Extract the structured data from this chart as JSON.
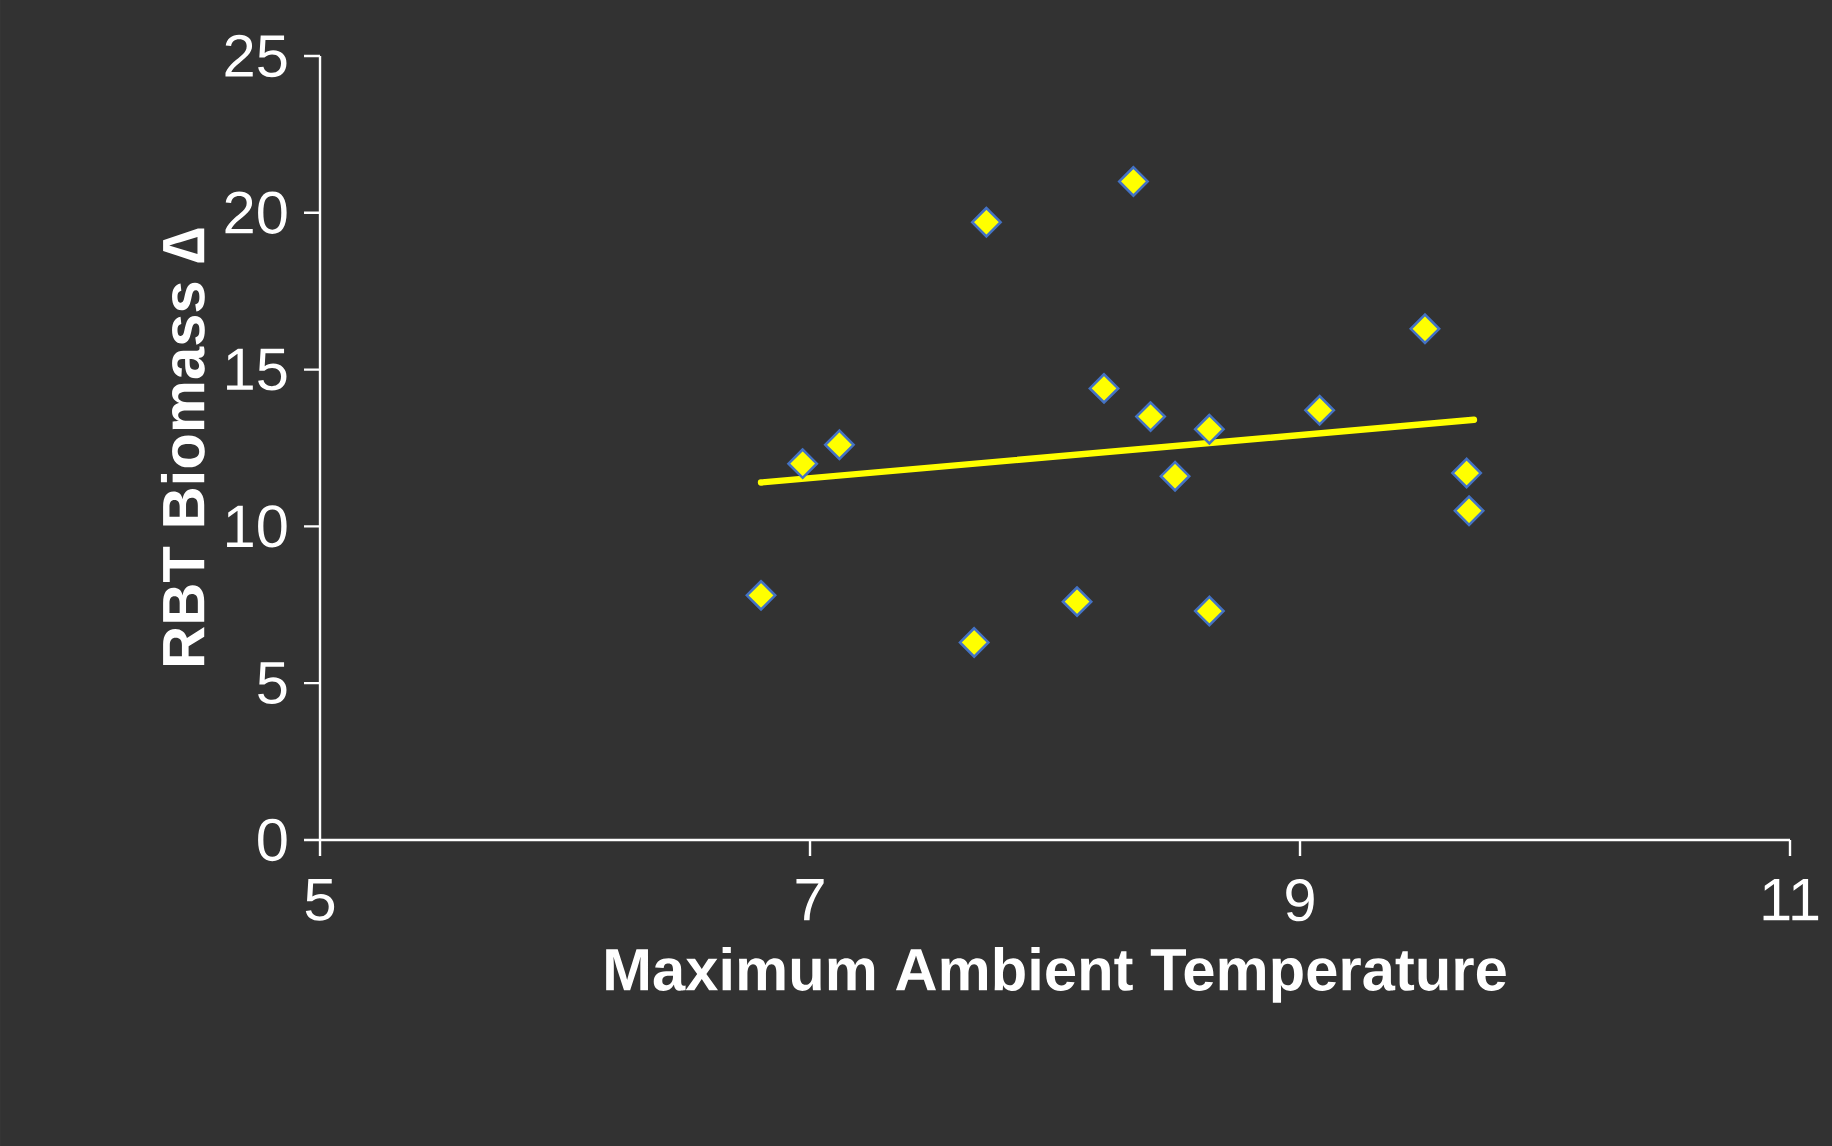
{
  "chart_data": {
    "type": "scatter",
    "xlabel": "Maximum Ambient Temperature",
    "ylabel": "RBT Biomass ∆",
    "xlim": [
      5,
      11
    ],
    "xticks": [
      5,
      7,
      9,
      11
    ],
    "ylim": [
      0,
      25
    ],
    "yticks": [
      0,
      5,
      10,
      15,
      20,
      25
    ],
    "grid": false,
    "series": [
      {
        "color": "#ffff00",
        "marker": "diamond",
        "x": [
          6.8,
          6.97,
          7.12,
          7.67,
          7.72,
          8.09,
          8.2,
          8.32,
          8.39,
          8.49,
          8.63,
          8.63,
          9.08,
          9.51,
          9.68,
          9.69
        ],
        "values": [
          7.8,
          12.0,
          12.6,
          6.3,
          19.7,
          7.6,
          14.4,
          21.0,
          13.5,
          11.6,
          13.1,
          7.3,
          13.7,
          16.3,
          11.7,
          10.5
        ]
      },
      {
        "type": "line",
        "color": "#ffff00",
        "marker": "none",
        "line_style": "solid",
        "x": [
          6.8,
          9.71
        ],
        "values": [
          11.4,
          13.4
        ]
      }
    ]
  }
}
